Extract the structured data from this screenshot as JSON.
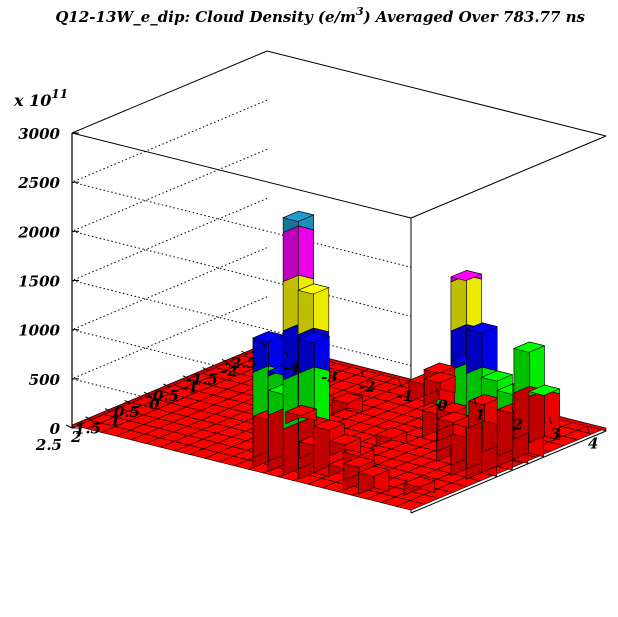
{
  "chart_data": {
    "type": "lego3d",
    "title": "Q12-13W_e_dip: Cloud Density (e/m",
    "title_sup": "3",
    "title_tail": ") Averaged Over 783.77 ns",
    "zexp_base": "x 10",
    "zexp_power": "11",
    "zlim": [
      0,
      3000
    ],
    "z_ticks": [
      "0",
      "500",
      "1000",
      "1500",
      "2000",
      "2500",
      "3000"
    ],
    "x_ticks": [
      "-4",
      "-3",
      "-2",
      "-1",
      "0",
      "1",
      "2",
      "3",
      "4"
    ],
    "y_ticks": [
      "2.5",
      "2",
      "1.5",
      "1",
      "0.5",
      "0",
      "-0.5",
      "-1",
      "-1.5",
      "-2",
      "-2.5"
    ],
    "xlim": [
      -4.5,
      4.5
    ],
    "ylim": [
      -2.5,
      2.5
    ],
    "grid": true,
    "color_levels": [
      {
        "upto": 500,
        "color": "#ff0000"
      },
      {
        "upto": 1000,
        "color": "#00ff00"
      },
      {
        "upto": 1500,
        "color": "#0000ff"
      },
      {
        "upto": 2000,
        "color": "#ffff00"
      },
      {
        "upto": 2500,
        "color": "#ff00ff"
      },
      {
        "upto": 3000,
        "color": "#1e9ccd"
      }
    ],
    "base_level": 30,
    "bins": [
      {
        "x": 1.2,
        "y": 2.2,
        "z": 2650
      },
      {
        "x": 1.6,
        "y": 2.2,
        "z": 1950
      },
      {
        "x": 1.2,
        "y": 1.8,
        "z": 1350
      },
      {
        "x": 0.4,
        "y": 2.2,
        "z": 1350
      },
      {
        "x": 0.8,
        "y": 2.2,
        "z": 1050
      },
      {
        "x": 0.4,
        "y": 1.8,
        "z": 750
      },
      {
        "x": 1.6,
        "y": 1.8,
        "z": 500
      },
      {
        "x": 0.0,
        "y": 1.8,
        "z": 450
      },
      {
        "x": 2.8,
        "y": 2.2,
        "z": 420
      },
      {
        "x": 3.2,
        "y": 2.2,
        "z": 250
      },
      {
        "x": 2.4,
        "y": 1.8,
        "z": 200
      },
      {
        "x": 2.0,
        "y": 1.8,
        "z": 150
      },
      {
        "x": 0.8,
        "y": 1.4,
        "z": 200
      },
      {
        "x": 1.2,
        "y": 1.0,
        "z": 180
      },
      {
        "x": 4.0,
        "y": 1.8,
        "z": 150
      },
      {
        "x": 4.0,
        "y": 0.6,
        "z": 2050
      },
      {
        "x": 4.0,
        "y": 0.2,
        "z": 1450
      },
      {
        "x": 3.6,
        "y": 0.2,
        "z": 1100
      },
      {
        "x": 3.2,
        "y": 0.2,
        "z": 750
      },
      {
        "x": 4.4,
        "y": 0.6,
        "z": 600
      },
      {
        "x": 4.4,
        "y": 0.2,
        "z": 1000
      },
      {
        "x": 4.4,
        "y": -0.2,
        "z": 800
      },
      {
        "x": 4.4,
        "y": -0.6,
        "z": 800
      },
      {
        "x": 4.0,
        "y": -0.6,
        "z": 500
      },
      {
        "x": 3.6,
        "y": -0.6,
        "z": 350
      },
      {
        "x": 3.6,
        "y": -1.4,
        "z": 950
      },
      {
        "x": 4.0,
        "y": -1.4,
        "z": 550
      },
      {
        "x": 2.8,
        "y": -0.2,
        "z": 500
      },
      {
        "x": 2.4,
        "y": -0.6,
        "z": 350
      },
      {
        "x": 2.0,
        "y": -0.6,
        "z": 300
      },
      {
        "x": 2.4,
        "y": -1.4,
        "z": 300
      },
      {
        "x": 0.8,
        "y": -1.8,
        "z": 400
      },
      {
        "x": 0.4,
        "y": -1.8,
        "z": 250
      },
      {
        "x": 0.4,
        "y": -2.2,
        "z": 200
      },
      {
        "x": -0.4,
        "y": -0.6,
        "z": 180
      },
      {
        "x": -0.8,
        "y": 0.2,
        "z": 150
      },
      {
        "x": 1.6,
        "y": 0.2,
        "z": 150
      },
      {
        "x": 2.0,
        "y": -1.0,
        "z": 150
      }
    ]
  }
}
